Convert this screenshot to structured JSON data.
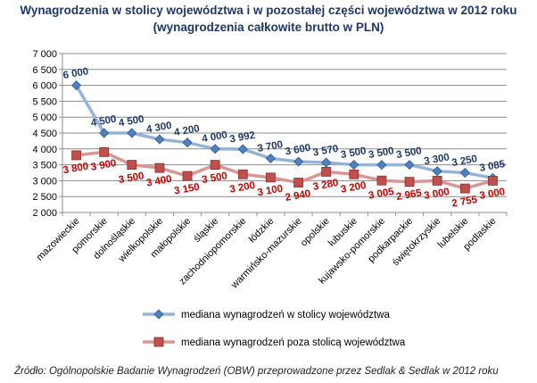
{
  "chart_data": {
    "type": "line",
    "title": "Wynagrodzenia w stolicy województwa i w pozostałej części województwa w 2012 roku",
    "subtitle": "(wynagrodzenia całkowite brutto w PLN)",
    "categories": [
      "mazowieckie",
      "pomorskie",
      "dolnośląskie",
      "wielkopolskie",
      "małopolskie",
      "śląskie",
      "zachodniopomorskie",
      "łódzkie",
      "warmińsko-mazurskie",
      "opolskie",
      "lubuskie",
      "kujawsko-pomorskie",
      "podkarpackie",
      "świętokrzyskie",
      "lubelskie",
      "podlaskie"
    ],
    "series": [
      {
        "name": "mediana wynagrodzeń w stolicy województwa",
        "values": [
          6000,
          4500,
          4500,
          4300,
          4200,
          4000,
          3992,
          3700,
          3600,
          3570,
          3500,
          3500,
          3500,
          3300,
          3250,
          3085
        ],
        "labels": [
          "6 000",
          "4 500",
          "4 500",
          "4 300",
          "4 200",
          "4 000",
          "3 992",
          "3 700",
          "3 600",
          "3 570",
          "3 500",
          "3 500",
          "3 500",
          "3 300",
          "3 250",
          "3 085"
        ],
        "color": "#95b3d7",
        "marker_color": "#4f81bd",
        "label_color": "#1f3864"
      },
      {
        "name": "mediana wynagrodzeń poza stolicą województwa",
        "values": [
          3800,
          3900,
          3500,
          3400,
          3150,
          3500,
          3200,
          3100,
          2940,
          3280,
          3200,
          3005,
          2965,
          3000,
          2755,
          3000
        ],
        "labels": [
          "3 800",
          "3 900",
          "3 500",
          "3 400",
          "3 150",
          "3 500",
          "3 200",
          "3 100",
          "2 940",
          "3 280",
          "3 200",
          "3 005",
          "2 965",
          "3 000",
          "2 755",
          "3 000"
        ],
        "color": "#d99694",
        "marker_color": "#c0504d",
        "label_color": "#c00000"
      }
    ],
    "ylim": [
      2000,
      7000
    ],
    "yticks": [
      2000,
      2500,
      3000,
      3500,
      4000,
      4500,
      5000,
      5500,
      6000,
      6500,
      7000
    ],
    "ytick_labels": [
      "2 000",
      "2 500",
      "3 000",
      "3 500",
      "4 000",
      "4 500",
      "5 000",
      "5 500",
      "6 000",
      "6 500",
      "7 000"
    ],
    "grid": true,
    "legend_position": "bottom"
  },
  "source": "Źródło: Ogólnopolskie Badanie Wynagrodzeń (OBW) przeprowadzone przez Sedlak & Sedlak w 2012 roku"
}
